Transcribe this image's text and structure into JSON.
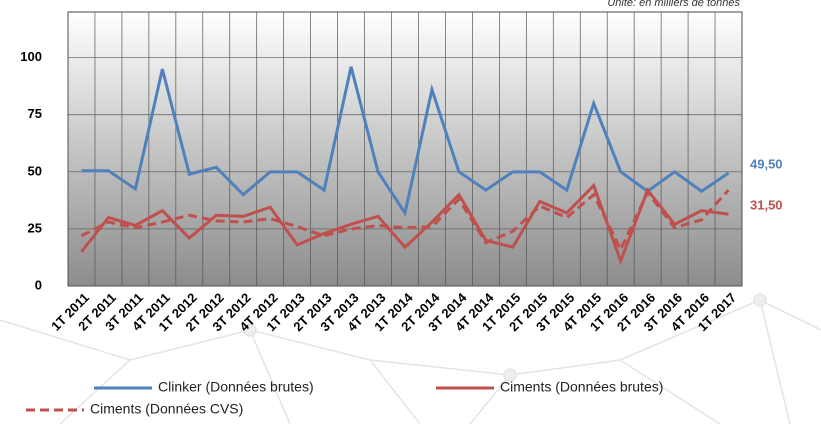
{
  "chart_data": {
    "type": "line",
    "note": "Unité: en milliers de tonnes",
    "categories": [
      "1T 2011",
      "2T 2011",
      "3T 2011",
      "4T 2011",
      "1T 2012",
      "2T 2012",
      "3T 2012",
      "4T 2012",
      "1T 2013",
      "2T 2013",
      "3T 2013",
      "4T 2013",
      "1T 2014",
      "2T 2014",
      "3T 2014",
      "4T 2014",
      "1T 2015",
      "2T 2015",
      "3T 2015",
      "4T 2015",
      "1T 2016",
      "2T 2016",
      "3T 2016",
      "4T 2016",
      "1T 2017"
    ],
    "series": [
      {
        "name": "Clinker (Données brutes)",
        "color": "#4f81bd",
        "dash": false,
        "values": [
          50.5,
          50.5,
          42.5,
          95,
          49,
          52,
          40,
          50,
          50,
          42,
          96,
          50,
          32,
          86,
          50,
          42,
          50,
          50,
          42,
          80,
          50,
          41.5,
          50,
          41.5,
          49.5
        ],
        "value_labels": [
          null,
          null,
          null,
          null,
          null,
          null,
          null,
          null,
          null,
          null,
          null,
          null,
          null,
          null,
          null,
          null,
          null,
          null,
          null,
          null,
          null,
          null,
          null,
          null,
          "49,50"
        ]
      },
      {
        "name": "Ciments (Données brutes)",
        "color": "#c0504d",
        "dash": false,
        "values": [
          15,
          30,
          26.5,
          33,
          21,
          31,
          30.5,
          34.5,
          18,
          23,
          27,
          30.5,
          17,
          28,
          40,
          20,
          17,
          37,
          32,
          44,
          11,
          42,
          27,
          33,
          31.5
        ],
        "value_labels": [
          null,
          null,
          null,
          null,
          null,
          null,
          null,
          null,
          null,
          null,
          null,
          null,
          null,
          null,
          null,
          null,
          null,
          null,
          null,
          null,
          null,
          null,
          null,
          null,
          "31,50"
        ]
      },
      {
        "name": "Ciments (Données CVS)",
        "color": "#c0504d",
        "dash": true,
        "values": [
          22,
          28,
          25.5,
          28,
          31,
          28.5,
          28,
          29.5,
          26,
          22,
          25,
          26.5,
          25.5,
          26,
          38,
          19,
          24,
          35,
          30,
          40,
          16,
          41,
          25.5,
          29,
          42
        ]
      }
    ],
    "ylim": [
      0,
      120
    ],
    "yticks": [
      0,
      25,
      50,
      75,
      100
    ],
    "grid": true
  }
}
